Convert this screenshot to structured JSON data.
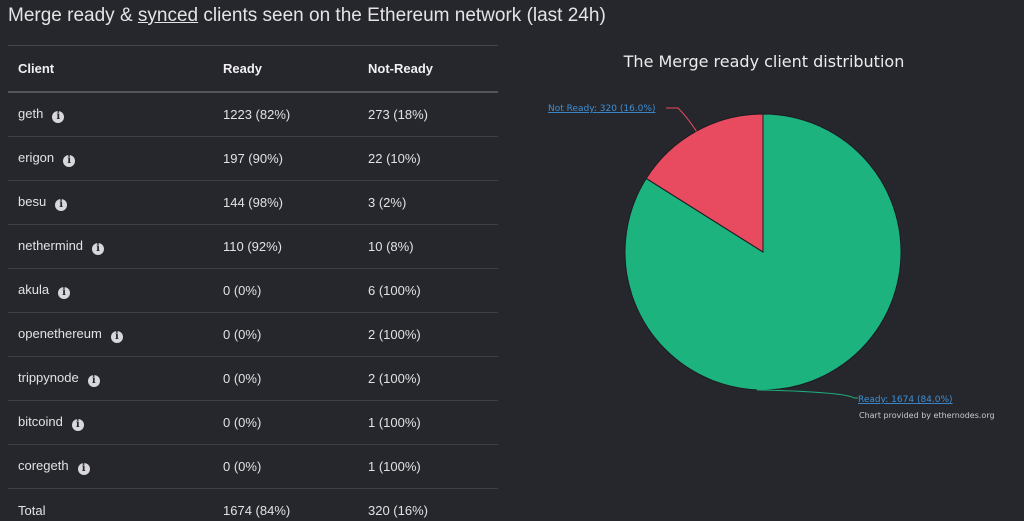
{
  "page": {
    "title_before": "Merge ready & ",
    "title_underlined": "synced",
    "title_after": " clients seen on the Ethereum network (last 24h)"
  },
  "table": {
    "headers": [
      "Client",
      "Ready",
      "Not-Ready"
    ],
    "rows": [
      {
        "client": "geth",
        "ready": "1223 (82%)",
        "not_ready": "273 (18%)"
      },
      {
        "client": "erigon",
        "ready": "197 (90%)",
        "not_ready": "22 (10%)"
      },
      {
        "client": "besu",
        "ready": "144 (98%)",
        "not_ready": "3 (2%)"
      },
      {
        "client": "nethermind",
        "ready": "110 (92%)",
        "not_ready": "10 (8%)"
      },
      {
        "client": "akula",
        "ready": "0 (0%)",
        "not_ready": "6 (100%)"
      },
      {
        "client": "openethereum",
        "ready": "0 (0%)",
        "not_ready": "2 (100%)"
      },
      {
        "client": "trippynode",
        "ready": "0 (0%)",
        "not_ready": "2 (100%)"
      },
      {
        "client": "bitcoind",
        "ready": "0 (0%)",
        "not_ready": "1 (100%)"
      },
      {
        "client": "coregeth",
        "ready": "0 (0%)",
        "not_ready": "1 (100%)"
      }
    ],
    "total": {
      "label": "Total",
      "ready": "1674 (84%)",
      "not_ready": "320 (16%)"
    },
    "info_icon": "info-icon"
  },
  "chart": {
    "credit": "Chart provided by ethernodes.org"
  },
  "chart_data": {
    "type": "pie",
    "title": "The Merge ready client distribution",
    "slices": [
      {
        "name": "Ready",
        "value": 1674,
        "label": "Ready: 1674 (84.0%)",
        "color": "#1db37f"
      },
      {
        "name": "Not Ready",
        "value": 320,
        "label": "Not Ready: 320 (16.0%)",
        "color": "#e84a5f"
      }
    ]
  }
}
